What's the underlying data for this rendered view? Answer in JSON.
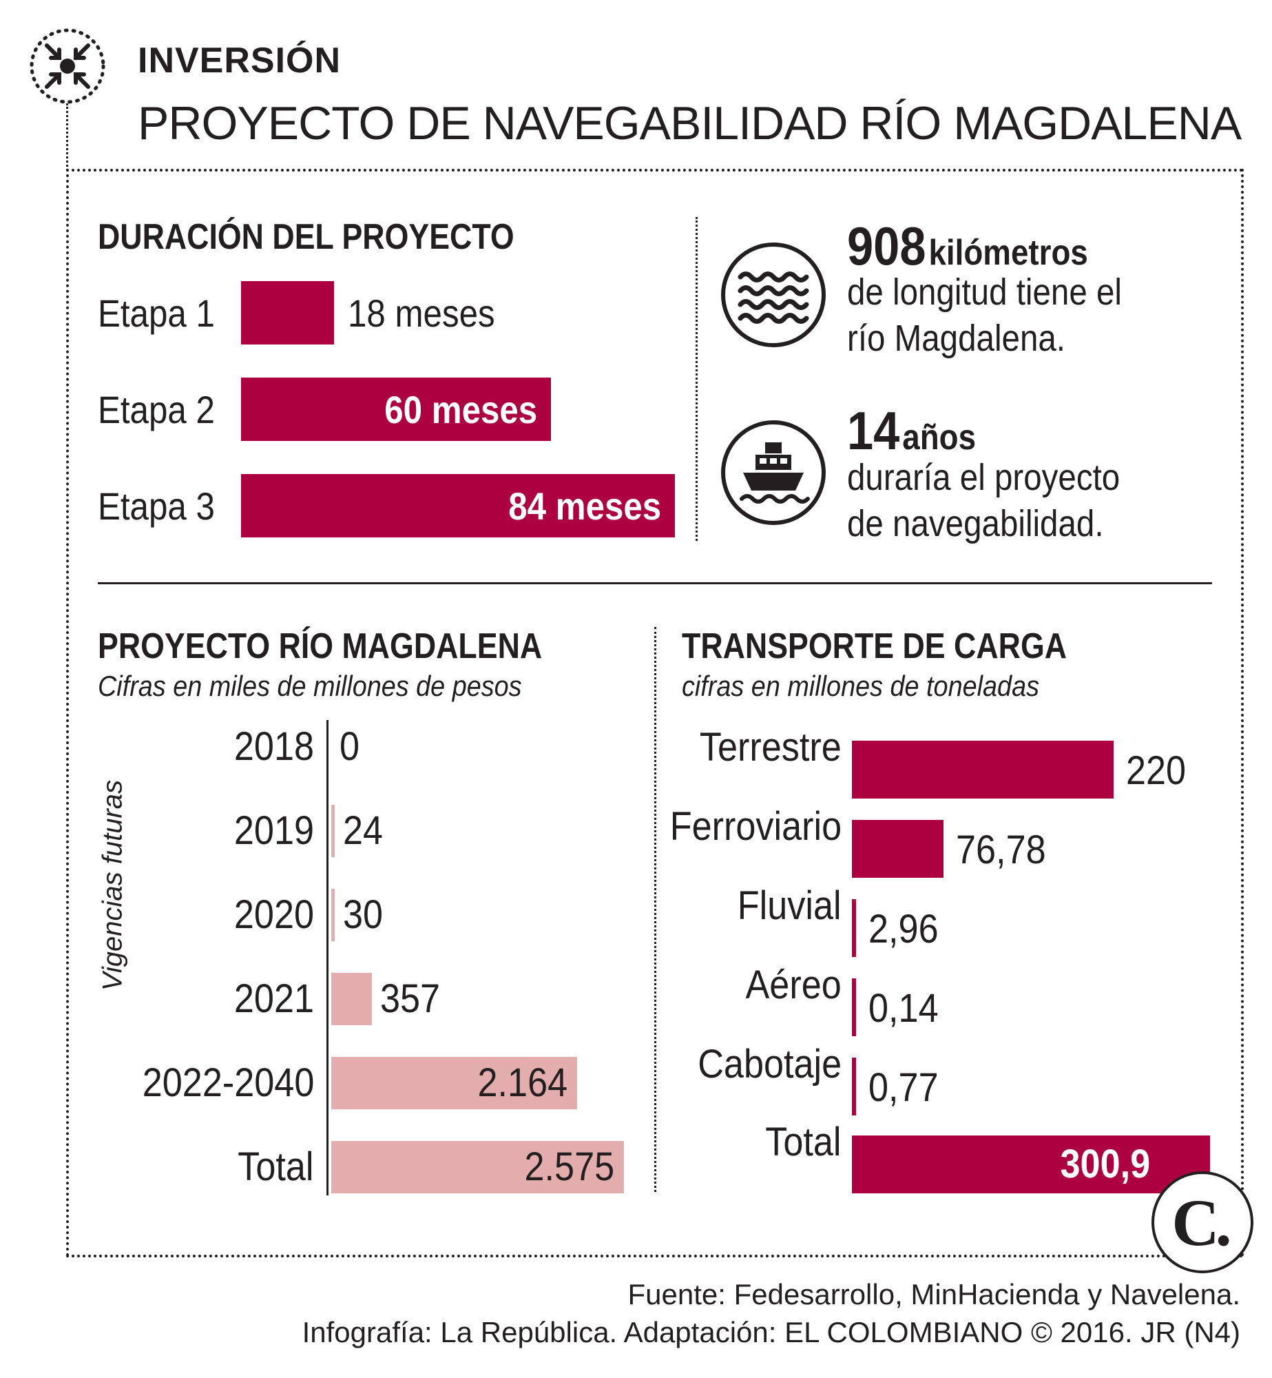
{
  "header": {
    "kicker": "INVERSIÓN",
    "title": "PROYECTO DE NAVEGABILIDAD RÍO MAGDALENA"
  },
  "duracion": {
    "title": "DURACIÓN DEL PROYECTO",
    "stages": [
      {
        "label": "Etapa 1",
        "value_text": "18 meses"
      },
      {
        "label": "Etapa 2",
        "value_text": "60 meses"
      },
      {
        "label": "Etapa 3",
        "value_text": "84  meses"
      }
    ]
  },
  "facts": [
    {
      "big": "908",
      "unit": "kilómetros",
      "line1": "de longitud tiene el",
      "line2": "río Magdalena."
    },
    {
      "big": "14",
      "unit": "años",
      "line1": "duraría el proyecto",
      "line2": "de navegabilidad."
    }
  ],
  "proyecto": {
    "title": "PROYECTO RÍO MAGDALENA",
    "subtitle": "Cifras en miles de millones de pesos",
    "axis_label": "Vigencias futuras"
  },
  "transporte": {
    "title": "TRANSPORTE DE CARGA",
    "subtitle": "cifras en millones de toneladas"
  },
  "footer": {
    "source": "Fuente: Fedesarrollo, MinHacienda y Navelena.",
    "credit": "Infografía: La República. Adaptación: EL COLOMBIANO © 2016. JR (N4)"
  },
  "logo_letter": "C.",
  "colors": {
    "crimson": "#ad0041",
    "pink": "#e4adad",
    "ink": "#231f20"
  },
  "chart_data": [
    {
      "type": "bar",
      "orientation": "horizontal",
      "title": "DURACIÓN DEL PROYECTO",
      "categories": [
        "Etapa 1",
        "Etapa 2",
        "Etapa 3"
      ],
      "values": [
        18,
        60,
        84
      ],
      "unit": "meses"
    },
    {
      "type": "bar",
      "orientation": "horizontal",
      "title": "PROYECTO RÍO MAGDALENA",
      "subtitle": "Cifras en miles de millones de pesos",
      "ylabel": "Vigencias futuras",
      "categories": [
        "2018",
        "2019",
        "2020",
        "2021",
        "2022-2040",
        "Total"
      ],
      "values": [
        0,
        24,
        30,
        357,
        2164,
        2575
      ],
      "value_labels": [
        "0",
        "24",
        "30",
        "357",
        "2.164",
        "2.575"
      ]
    },
    {
      "type": "bar",
      "orientation": "horizontal",
      "title": "TRANSPORTE DE CARGA",
      "subtitle": "cifras en millones de toneladas",
      "categories": [
        "Terrestre",
        "Ferroviario",
        "Fluvial",
        "Aéreo",
        "Cabotaje",
        "Total"
      ],
      "values": [
        220,
        76.78,
        2.96,
        0.14,
        0.77,
        300.9
      ],
      "value_labels": [
        "220",
        "76,78",
        "2,96",
        "0,14",
        "0,77",
        "300,9"
      ]
    }
  ]
}
